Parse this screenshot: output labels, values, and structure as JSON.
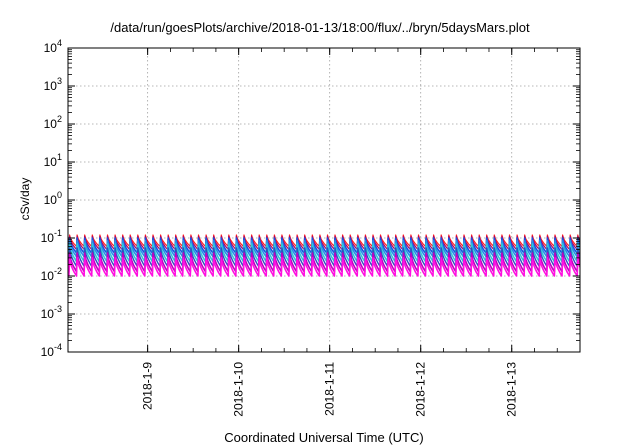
{
  "chart_data": {
    "type": "line",
    "title": "/data/run/goesPlots/archive/2018-01-13/18:00/flux/../bryn/5daysMars.plot",
    "xlabel": "Coordinated Universal Time (UTC)",
    "ylabel": "cSv/day",
    "y_scale": "log",
    "ylim": [
      0.0001,
      10000
    ],
    "y_ticks": [
      {
        "base": "10",
        "exp": "-4",
        "value": 0.0001
      },
      {
        "base": "10",
        "exp": "-3",
        "value": 0.001
      },
      {
        "base": "10",
        "exp": "-2",
        "value": 0.01
      },
      {
        "base": "10",
        "exp": "-1",
        "value": 0.1
      },
      {
        "base": "10",
        "exp": "0",
        "value": 1
      },
      {
        "base": "10",
        "exp": "1",
        "value": 10
      },
      {
        "base": "10",
        "exp": "2",
        "value": 100
      },
      {
        "base": "10",
        "exp": "3",
        "value": 1000
      },
      {
        "base": "10",
        "exp": "4",
        "value": 10000
      }
    ],
    "xlim": [
      "2018-01-08T03:00",
      "2018-01-13T18:00"
    ],
    "x_ticks": [
      {
        "label": "2018-1-9",
        "value": "2018-01-09T00:00"
      },
      {
        "label": "2018-1-10",
        "value": "2018-01-10T00:00"
      },
      {
        "label": "2018-1-11",
        "value": "2018-01-11T00:00"
      },
      {
        "label": "2018-1-12",
        "value": "2018-01-12T00:00"
      },
      {
        "label": "2018-1-13",
        "value": "2018-01-13T00:00"
      }
    ],
    "grid": true,
    "pattern": {
      "cycle_hours": 2,
      "start_offset_hours": 0.25,
      "drop_fraction_of_cycle": 0.25
    },
    "series": [
      {
        "color": "#ff2020",
        "peak": 0.12,
        "trough": 0.06,
        "width": 1.2
      },
      {
        "color": "#b00060",
        "peak": 0.11,
        "trough": 0.05,
        "width": 1.2
      },
      {
        "color": "#1a50e0",
        "peak": 0.1,
        "trough": 0.04,
        "width": 1.6
      },
      {
        "color": "#2890e8",
        "peak": 0.085,
        "trough": 0.032,
        "width": 1.6
      },
      {
        "color": "#30c8d8",
        "peak": 0.07,
        "trough": 0.024,
        "width": 1.6
      },
      {
        "color": "#3050c0",
        "peak": 0.055,
        "trough": 0.018,
        "width": 1.4
      },
      {
        "color": "#c000c0",
        "peak": 0.04,
        "trough": 0.013,
        "width": 1.6
      },
      {
        "color": "#ff10e0",
        "peak": 0.03,
        "trough": 0.01,
        "width": 1.6
      }
    ]
  }
}
